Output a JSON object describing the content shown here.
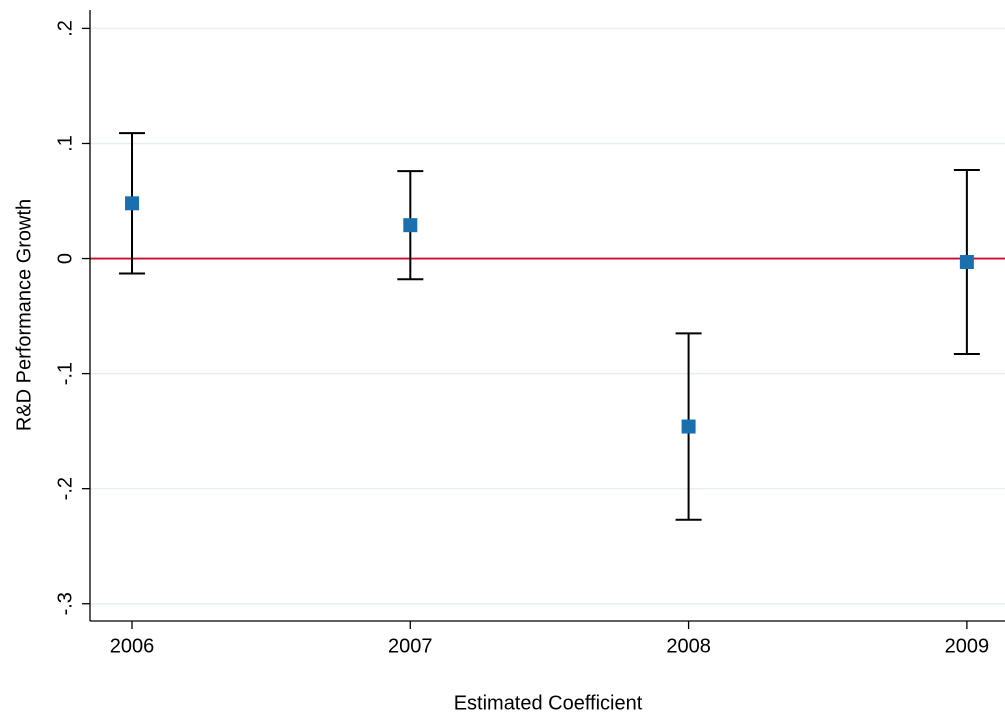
{
  "chart_data": {
    "type": "errorbar",
    "xlabel": "Estimated Coefficient",
    "ylabel": "R&D Performance Growth",
    "x": [
      2006,
      2007,
      2008,
      2009
    ],
    "series": [
      {
        "color": "#1a6fae",
        "values": [
          0.048,
          0.029,
          -0.146,
          -0.003
        ],
        "errors": [
          0.061,
          0.047,
          0.081,
          0.08
        ]
      }
    ],
    "xlim": [
      2005.849,
      2009.137
    ],
    "xticks": [
      2006,
      2007,
      2008,
      2009
    ],
    "ylim": [
      -0.315,
      0.216
    ],
    "yticks": [
      {
        "value": -0.3,
        "label": "-.3"
      },
      {
        "value": -0.2,
        "label": "-.2"
      },
      {
        "value": -0.1,
        "label": "-.1"
      },
      0,
      {
        "value": 0.1,
        "label": ".1"
      },
      {
        "value": 0.2,
        "label": ".2"
      }
    ],
    "grid": true,
    "reference_line": {
      "value": 0,
      "color": "#c8102e"
    }
  }
}
